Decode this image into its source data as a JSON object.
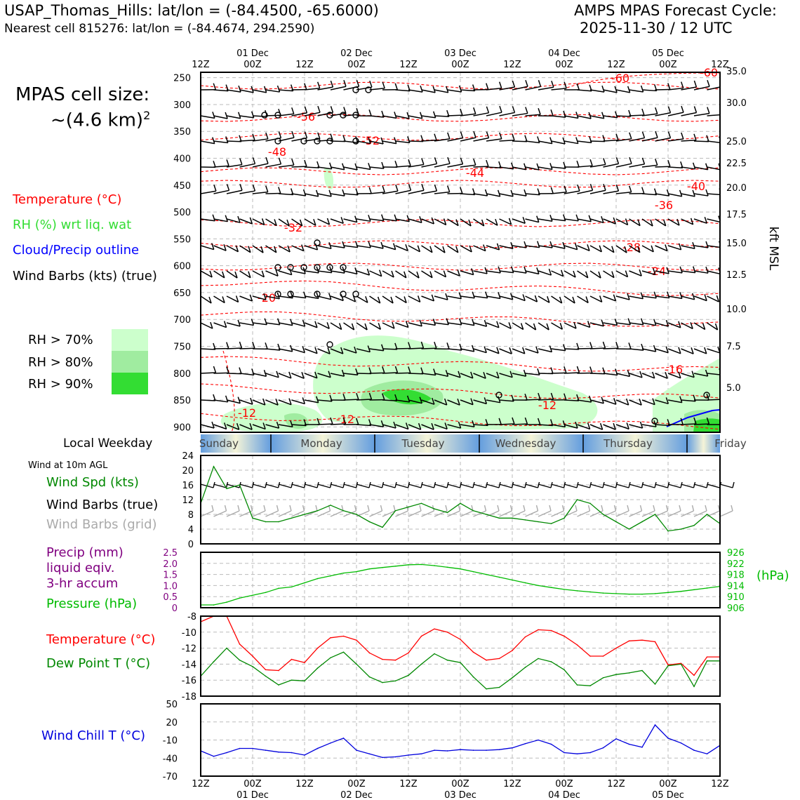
{
  "header": {
    "site_line": "USAP_Thomas_Hills: lat/lon = (-84.4500, -65.6000)",
    "cell_line": "Nearest cell 815276: lat/lon = (-84.4674, 294.2590)",
    "cycle_title": "AMPS MPAS Forecast Cycle:",
    "cycle_date": "2025-11-30 / 12 UTC"
  },
  "cell_size": {
    "label": "MPAS cell size:",
    "value": "~(4.6 km)",
    "exponent": "2"
  },
  "legend": {
    "temperature": "Temperature (°C)",
    "rh": "RH (%) wrt liq. wat",
    "cloud": "Cloud/Precip outline",
    "wind": "Wind Barbs (kts) (true)",
    "rh_levels": [
      {
        "label": "RH > 70%",
        "color": "#ccffcc"
      },
      {
        "label": "RH > 80%",
        "color": "#a0eca0"
      },
      {
        "label": "RH > 90%",
        "color": "#33dd33"
      }
    ]
  },
  "colors": {
    "temperature": "#ff0000",
    "rh": "#33dd33",
    "cloud": "#0000ff",
    "wind_spd": "#008800",
    "pressure": "#00bb00",
    "precip": "#800080",
    "dewpoint": "#008800",
    "windchill": "#0000dd",
    "grid_barb": "#aaaaaa"
  },
  "time_axis": {
    "hours": [
      "12Z",
      "00Z",
      "12Z",
      "00Z",
      "12Z",
      "00Z",
      "12Z",
      "00Z",
      "12Z",
      "00Z",
      "12Z"
    ],
    "dates": [
      "01 Dec",
      "02 Dec",
      "03 Dec",
      "04 Dec",
      "05 Dec"
    ]
  },
  "weekday": {
    "title": "Local Weekday",
    "days": [
      "Sunday",
      "Monday",
      "Tuesday",
      "Wednesday",
      "Thursday",
      "Friday"
    ]
  },
  "wind10m": {
    "title": "Wind at 10m AGL",
    "spd_label": "Wind Spd (kts)",
    "barb_true_label": "Wind Barbs (true)",
    "barb_grid_label": "Wind Barbs (grid)"
  },
  "precip_panel": {
    "precip_label_1": "Precip (mm)",
    "precip_label_2": "liquid eqiv.",
    "precip_label_3": "3-hr accum",
    "pressure_label": "Pressure (hPa)",
    "unit_right": "(hPa)"
  },
  "temp_panel": {
    "temp_label": "Temperature (°C)",
    "dew_label": "Dew Point T (°C)"
  },
  "chill_panel": {
    "label": "Wind Chill T (°C)"
  },
  "chart_data": [
    {
      "type": "contour",
      "panel": "time-height cross section",
      "x_hours_from_start": [
        0,
        120
      ],
      "y_left_label": "",
      "y_left_ticks": [
        "250",
        "300",
        "350",
        "400",
        "450",
        "500",
        "550",
        "600",
        "650",
        "700",
        "750",
        "800",
        "850",
        "900"
      ],
      "y_right_label": "kft MSL",
      "y_right_ticks": [
        "35.0",
        "30.0",
        "25.0",
        "22.5",
        "20.0",
        "17.5",
        "15.0",
        "12.5",
        "10.0",
        "7.5",
        "5.0"
      ],
      "ylim_hpa": [
        240,
        910
      ],
      "temperature_labels": [
        "-60",
        "-60",
        "-56",
        "-52",
        "-48",
        "-44",
        "-40",
        "-36",
        "-32",
        "-28",
        "-24",
        "-20",
        "-16",
        "-12",
        "-12",
        "-12"
      ]
    },
    {
      "type": "line",
      "panel": "wind10m",
      "x": [
        0,
        3,
        6,
        9,
        12,
        15,
        18,
        21,
        24,
        27,
        30,
        33,
        36,
        39,
        42,
        45,
        48,
        51,
        54,
        57,
        60,
        63,
        66,
        69,
        72,
        75,
        78,
        81,
        84,
        87,
        90,
        93,
        96,
        99,
        102,
        105,
        108,
        111,
        114,
        117,
        120
      ],
      "values": [
        11,
        21,
        15,
        16,
        7,
        6,
        6,
        7,
        8,
        9,
        10.5,
        9,
        8,
        6,
        4.5,
        9,
        10,
        11,
        9.5,
        8.5,
        11,
        9,
        8,
        7,
        7,
        6.5,
        6,
        5.5,
        7,
        12,
        11,
        8,
        6,
        4,
        6,
        8,
        3.5,
        4,
        5,
        8,
        5.5
      ],
      "ylim": [
        0,
        24
      ],
      "yticks": [
        "0",
        "4",
        "8",
        "12",
        "16",
        "20",
        "24"
      ]
    },
    {
      "type": "line",
      "panel": "pressure",
      "x": [
        0,
        3,
        6,
        9,
        12,
        15,
        18,
        21,
        24,
        27,
        30,
        33,
        36,
        39,
        42,
        45,
        48,
        51,
        54,
        57,
        60,
        63,
        66,
        69,
        72,
        75,
        78,
        81,
        84,
        87,
        90,
        93,
        96,
        99,
        102,
        105,
        108,
        111,
        114,
        117,
        120
      ],
      "values": [
        907,
        907,
        908,
        909.5,
        910.5,
        911.5,
        913,
        913.5,
        915,
        916.5,
        917.5,
        918.5,
        919,
        920,
        920.5,
        921,
        921.5,
        921.6,
        921.2,
        920.6,
        920,
        919,
        918,
        917,
        916,
        915,
        914,
        913.3,
        912.6,
        912.1,
        911.7,
        911.3,
        911.1,
        910.9,
        910.9,
        911.1,
        911.5,
        911.9,
        912.5,
        913.1,
        913.7
      ],
      "ylim_left": [
        0,
        2.5
      ],
      "yticks_left": [
        "0",
        "0.5",
        "1.0",
        "1.5",
        "2.0",
        "2.5"
      ],
      "ylim_right": [
        906,
        926
      ],
      "yticks_right": [
        "906",
        "910",
        "914",
        "918",
        "922",
        "926"
      ]
    },
    {
      "type": "line",
      "panel": "temperature",
      "series": [
        {
          "name": "Temperature (°C)",
          "values": [
            -8.7,
            -8,
            -8,
            -11.5,
            -13,
            -14.7,
            -14.8,
            -13.4,
            -13.8,
            -12,
            -10.7,
            -10.5,
            -11,
            -12.6,
            -13.4,
            -13.5,
            -12.6,
            -10.5,
            -9.6,
            -10,
            -10.9,
            -12.5,
            -13.5,
            -13.3,
            -12.3,
            -10.6,
            -9.7,
            -9.8,
            -10.5,
            -11.6,
            -13,
            -13,
            -12,
            -11.1,
            -11,
            -11.2,
            -14.1,
            -13.9,
            -15.4,
            -13.1,
            -13.1
          ]
        },
        {
          "name": "Dew Point T (°C)",
          "values": [
            -15.5,
            -13.7,
            -12,
            -13.5,
            -14.3,
            -15.5,
            -16.6,
            -16,
            -16.1,
            -14.5,
            -13.2,
            -12.5,
            -14,
            -15.6,
            -16.3,
            -16.1,
            -15.4,
            -14,
            -12.7,
            -13.5,
            -13.8,
            -15.6,
            -17.1,
            -16.9,
            -15.7,
            -14.4,
            -13.3,
            -13.7,
            -14.7,
            -16.6,
            -16.7,
            -15.7,
            -15.3,
            -15.1,
            -14.8,
            -16.5,
            -14.2,
            -14,
            -16.8,
            -13.6,
            -13.6
          ]
        }
      ],
      "x": [
        0,
        3,
        6,
        9,
        12,
        15,
        18,
        21,
        24,
        27,
        30,
        33,
        36,
        39,
        42,
        45,
        48,
        51,
        54,
        57,
        60,
        63,
        66,
        69,
        72,
        75,
        78,
        81,
        84,
        87,
        90,
        93,
        96,
        99,
        102,
        105,
        108,
        111,
        114,
        117,
        120
      ],
      "ylim": [
        -18,
        -8
      ],
      "yticks": [
        "-18",
        "-16",
        "-14",
        "-12",
        "-10",
        "-8"
      ]
    },
    {
      "type": "line",
      "panel": "windchill",
      "x": [
        0,
        3,
        6,
        9,
        12,
        15,
        18,
        21,
        24,
        27,
        30,
        33,
        36,
        39,
        42,
        45,
        48,
        51,
        54,
        57,
        60,
        63,
        66,
        69,
        72,
        75,
        78,
        81,
        84,
        87,
        90,
        93,
        96,
        99,
        102,
        105,
        108,
        111,
        114,
        117,
        120
      ],
      "values": [
        -28,
        -37,
        -31,
        -24,
        -24,
        -27,
        -30,
        -31,
        -35,
        -24,
        -15,
        -7,
        -27,
        -33,
        -39,
        -38,
        -35,
        -33,
        -27,
        -28,
        -26,
        -27,
        -27,
        -26,
        -23,
        -16,
        -10,
        -17,
        -31,
        -33,
        -31,
        -23,
        -8,
        -17,
        -22,
        15,
        -7,
        -15,
        -27,
        -33,
        -19
      ],
      "ylim": [
        -70,
        50
      ],
      "yticks": [
        "-70",
        "-40",
        "-10",
        "20",
        "50"
      ]
    }
  ]
}
